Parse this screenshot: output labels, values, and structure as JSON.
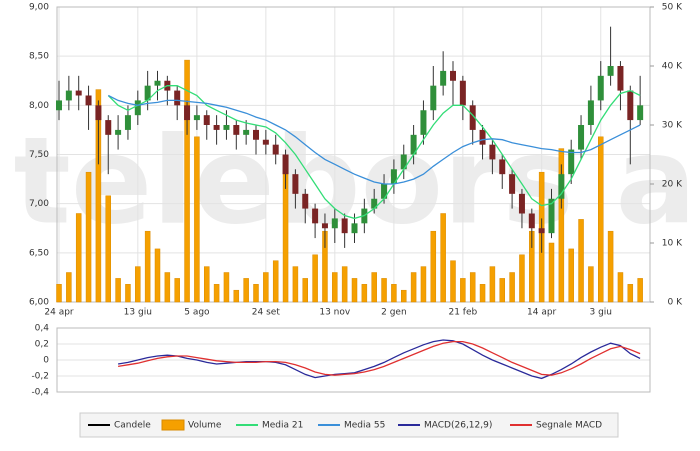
{
  "watermark": "telebors a",
  "chart_data": [
    {
      "type": "candlestick",
      "categories": [
        "24 apr",
        null,
        null,
        null,
        null,
        null,
        null,
        null,
        "13 giu",
        null,
        null,
        null,
        null,
        null,
        "5 ago",
        null,
        null,
        null,
        null,
        null,
        null,
        "24 set",
        null,
        null,
        null,
        null,
        null,
        null,
        "13 nov",
        null,
        null,
        null,
        null,
        null,
        "2 gen",
        null,
        null,
        null,
        null,
        null,
        null,
        "21 feb",
        null,
        null,
        null,
        null,
        null,
        null,
        null,
        "14 apr",
        null,
        null,
        null,
        null,
        null,
        "3 giu",
        null,
        null,
        null,
        null
      ],
      "candles": {
        "name": "Candele",
        "color": "#000000",
        "up_color": "#2f8f3a",
        "down_color": "#7a2424",
        "open": [
          7.95,
          8.05,
          8.15,
          8.1,
          8.0,
          7.85,
          7.7,
          7.75,
          7.9,
          8.05,
          8.2,
          8.25,
          8.15,
          8.0,
          7.85,
          7.9,
          7.8,
          7.75,
          7.8,
          7.7,
          7.75,
          7.65,
          7.6,
          7.5,
          7.3,
          7.1,
          6.95,
          6.8,
          6.75,
          6.85,
          6.7,
          6.8,
          6.95,
          7.05,
          7.2,
          7.35,
          7.5,
          7.7,
          7.95,
          8.2,
          8.35,
          8.25,
          8.0,
          7.75,
          7.6,
          7.45,
          7.3,
          7.1,
          6.9,
          6.75,
          6.7,
          7.05,
          7.3,
          7.55,
          7.8,
          8.05,
          8.3,
          8.4,
          8.15,
          7.85
        ],
        "high": [
          8.25,
          8.3,
          8.3,
          8.2,
          8.05,
          7.9,
          7.9,
          8.0,
          8.15,
          8.35,
          8.35,
          8.3,
          8.2,
          8.05,
          8.0,
          7.95,
          7.9,
          7.95,
          7.85,
          7.85,
          7.8,
          7.75,
          7.7,
          7.55,
          7.35,
          7.15,
          7.0,
          6.9,
          6.95,
          6.9,
          6.9,
          7.05,
          7.15,
          7.3,
          7.45,
          7.6,
          7.8,
          8.05,
          8.4,
          8.55,
          8.45,
          8.3,
          8.05,
          7.8,
          7.65,
          7.5,
          7.35,
          7.15,
          6.95,
          6.85,
          7.15,
          7.4,
          7.65,
          7.9,
          8.2,
          8.45,
          8.8,
          8.45,
          8.2,
          8.3
        ],
        "low": [
          7.85,
          7.95,
          7.95,
          7.75,
          7.4,
          7.3,
          7.55,
          7.65,
          7.8,
          7.95,
          8.05,
          8.0,
          7.85,
          7.7,
          7.75,
          7.65,
          7.6,
          7.65,
          7.55,
          7.6,
          7.5,
          7.5,
          7.4,
          7.15,
          6.95,
          6.8,
          6.65,
          6.55,
          6.6,
          6.55,
          6.6,
          6.7,
          6.9,
          7.0,
          7.1,
          7.25,
          7.4,
          7.6,
          7.85,
          8.1,
          8.0,
          7.85,
          7.6,
          7.45,
          7.3,
          7.15,
          6.95,
          6.75,
          6.55,
          6.5,
          6.65,
          6.95,
          7.2,
          7.45,
          7.7,
          7.95,
          8.2,
          7.95,
          7.4,
          7.8
        ],
        "close": [
          8.05,
          8.15,
          8.1,
          8.0,
          7.85,
          7.7,
          7.75,
          7.9,
          8.05,
          8.2,
          8.25,
          8.15,
          8.0,
          7.85,
          7.9,
          7.8,
          7.75,
          7.8,
          7.7,
          7.75,
          7.65,
          7.6,
          7.5,
          7.3,
          7.1,
          6.95,
          6.8,
          6.75,
          6.85,
          6.7,
          6.8,
          6.95,
          7.05,
          7.2,
          7.35,
          7.5,
          7.7,
          7.95,
          8.2,
          8.35,
          8.25,
          8.0,
          7.75,
          7.6,
          7.45,
          7.3,
          7.1,
          6.9,
          6.75,
          6.7,
          7.05,
          7.3,
          7.55,
          7.8,
          8.05,
          8.3,
          8.4,
          8.15,
          7.85,
          8.0
        ]
      },
      "series": [
        {
          "name": "Media 21",
          "color": "#33dd77",
          "values": [
            null,
            null,
            null,
            null,
            null,
            8.1,
            8.0,
            7.95,
            8.0,
            8.05,
            8.15,
            8.2,
            8.2,
            8.15,
            8.1,
            8.0,
            7.95,
            7.9,
            7.85,
            7.82,
            7.8,
            7.78,
            7.72,
            7.62,
            7.5,
            7.35,
            7.2,
            7.05,
            6.95,
            6.88,
            6.85,
            6.88,
            6.95,
            7.05,
            7.2,
            7.35,
            7.5,
            7.65,
            7.8,
            7.92,
            8.0,
            8.0,
            7.9,
            7.78,
            7.65,
            7.5,
            7.35,
            7.2,
            7.05,
            6.98,
            7.0,
            7.1,
            7.25,
            7.45,
            7.65,
            7.85,
            8.0,
            8.12,
            8.15,
            8.1
          ]
        },
        {
          "name": "Media 55",
          "color": "#3a8fd9",
          "values": [
            null,
            null,
            null,
            null,
            null,
            8.1,
            8.05,
            8.02,
            8.0,
            8.02,
            8.03,
            8.05,
            8.05,
            8.04,
            8.03,
            8.02,
            8.0,
            7.98,
            7.95,
            7.92,
            7.88,
            7.85,
            7.8,
            7.75,
            7.68,
            7.6,
            7.52,
            7.45,
            7.4,
            7.35,
            7.3,
            7.26,
            7.22,
            7.2,
            7.2,
            7.22,
            7.25,
            7.3,
            7.38,
            7.45,
            7.52,
            7.58,
            7.62,
            7.65,
            7.66,
            7.65,
            7.62,
            7.6,
            7.58,
            7.56,
            7.55,
            7.53,
            7.52,
            7.52,
            7.55,
            7.6,
            7.65,
            7.7,
            7.75,
            7.8
          ]
        },
        {
          "name": "Volume",
          "type": "bar",
          "axis": "y2",
          "color": "#f5a000",
          "values": [
            3000,
            5000,
            15000,
            22000,
            36000,
            18000,
            4000,
            3000,
            6000,
            12000,
            9000,
            5000,
            4000,
            41000,
            28000,
            6000,
            3000,
            5000,
            2000,
            4000,
            3000,
            5000,
            7000,
            22000,
            6000,
            4000,
            8000,
            12000,
            5000,
            6000,
            4000,
            3000,
            5000,
            4000,
            3000,
            2000,
            5000,
            6000,
            12000,
            15000,
            7000,
            4000,
            5000,
            3000,
            6000,
            4000,
            5000,
            8000,
            12000,
            22000,
            10000,
            26000,
            9000,
            14000,
            6000,
            28000,
            12000,
            5000,
            3000,
            4000
          ]
        }
      ],
      "ylim": [
        6,
        9
      ],
      "yticks": [
        {
          "value": 6,
          "label": "6,00"
        },
        {
          "value": 6.5,
          "label": "6,50"
        },
        {
          "value": 7,
          "label": "7,00"
        },
        {
          "value": 7.5,
          "label": "7,50"
        },
        {
          "value": 8,
          "label": "8,00"
        },
        {
          "value": 8.5,
          "label": "8,50"
        },
        {
          "value": 9,
          "label": "9,00"
        }
      ],
      "y2lim": [
        0,
        50000
      ],
      "y2ticks": [
        {
          "value": 0,
          "label": "0 K"
        },
        {
          "value": 10000,
          "label": "10 K"
        },
        {
          "value": 20000,
          "label": "20 K"
        },
        {
          "value": 30000,
          "label": "30 K"
        },
        {
          "value": 40000,
          "label": "40 K"
        },
        {
          "value": 50000,
          "label": "50 K"
        }
      ],
      "grid": true
    },
    {
      "type": "line",
      "series": [
        {
          "name": "MACD(26,12,9)",
          "color": "#2a2a9a",
          "values": [
            null,
            null,
            null,
            null,
            null,
            null,
            -0.05,
            -0.03,
            0.0,
            0.03,
            0.05,
            0.06,
            0.05,
            0.02,
            0.0,
            -0.03,
            -0.05,
            -0.04,
            -0.03,
            -0.02,
            -0.02,
            -0.02,
            -0.03,
            -0.06,
            -0.12,
            -0.18,
            -0.22,
            -0.2,
            -0.18,
            -0.17,
            -0.16,
            -0.12,
            -0.08,
            -0.03,
            0.03,
            0.09,
            0.14,
            0.19,
            0.23,
            0.25,
            0.24,
            0.2,
            0.13,
            0.06,
            0.0,
            -0.05,
            -0.1,
            -0.15,
            -0.2,
            -0.23,
            -0.18,
            -0.12,
            -0.05,
            0.03,
            0.1,
            0.16,
            0.21,
            0.18,
            0.08,
            0.02
          ]
        },
        {
          "name": "Segnale MACD",
          "color": "#e03030",
          "values": [
            null,
            null,
            null,
            null,
            null,
            null,
            -0.08,
            -0.06,
            -0.04,
            -0.01,
            0.02,
            0.04,
            0.05,
            0.05,
            0.03,
            0.01,
            -0.01,
            -0.02,
            -0.03,
            -0.03,
            -0.03,
            -0.02,
            -0.02,
            -0.03,
            -0.06,
            -0.1,
            -0.15,
            -0.18,
            -0.19,
            -0.18,
            -0.17,
            -0.15,
            -0.12,
            -0.08,
            -0.03,
            0.02,
            0.07,
            0.12,
            0.17,
            0.21,
            0.23,
            0.23,
            0.2,
            0.15,
            0.09,
            0.03,
            -0.03,
            -0.08,
            -0.13,
            -0.18,
            -0.19,
            -0.16,
            -0.11,
            -0.05,
            0.02,
            0.08,
            0.14,
            0.17,
            0.13,
            0.08
          ]
        }
      ],
      "ylim": [
        -0.4,
        0.4
      ],
      "yticks": [
        {
          "value": -0.4,
          "label": "-0,4"
        },
        {
          "value": -0.2,
          "label": "-0,2"
        },
        0,
        {
          "value": 0.2,
          "label": "0,2"
        },
        {
          "value": 0.4,
          "label": "0,4"
        }
      ],
      "grid": true
    }
  ]
}
